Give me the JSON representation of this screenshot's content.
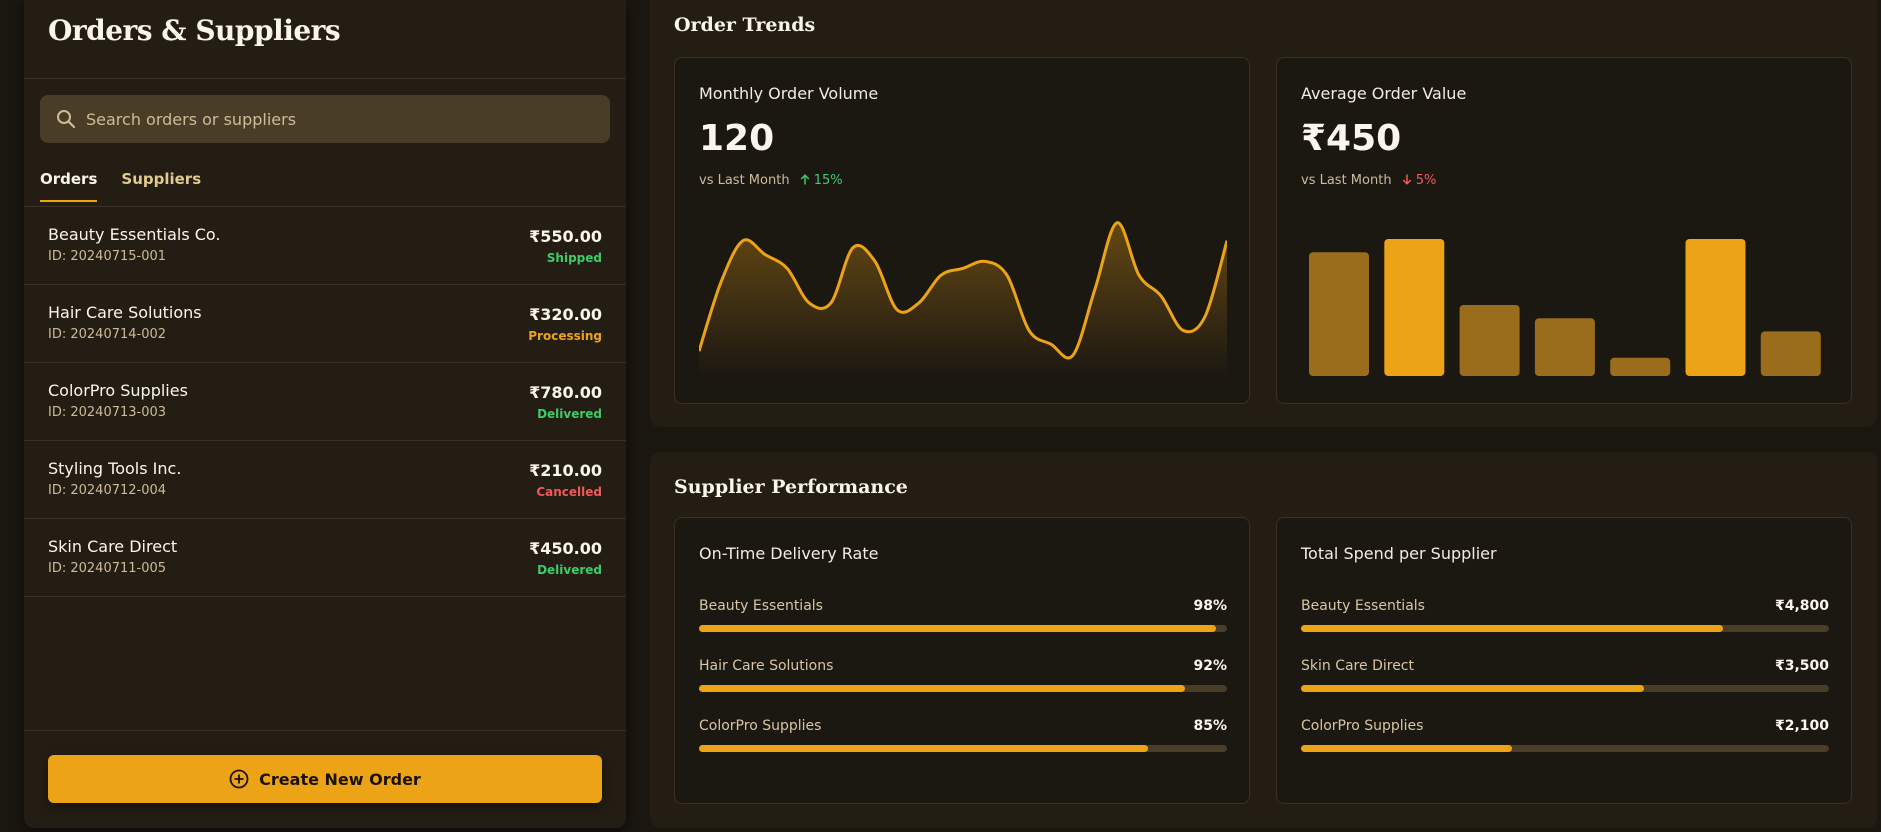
{
  "sidebar": {
    "title": "Orders & Suppliers",
    "search_placeholder": "Search orders or suppliers",
    "tabs": [
      {
        "label": "Orders"
      },
      {
        "label": "Suppliers"
      }
    ],
    "orders": [
      {
        "name": "Beauty Essentials Co.",
        "id": "ID: 20240715-001",
        "amount": "₹550.00",
        "status": "Shipped",
        "status_color": "#3ecb6b"
      },
      {
        "name": "Hair Care Solutions",
        "id": "ID: 20240714-002",
        "amount": "₹320.00",
        "status": "Processing",
        "status_color": "#eda316"
      },
      {
        "name": "ColorPro Supplies",
        "id": "ID: 20240713-003",
        "amount": "₹780.00",
        "status": "Delivered",
        "status_color": "#3ecb6b"
      },
      {
        "name": "Styling Tools Inc.",
        "id": "ID: 20240712-004",
        "amount": "₹210.00",
        "status": "Cancelled",
        "status_color": "#ef5a5a"
      },
      {
        "name": "Skin Care Direct",
        "id": "ID: 20240711-005",
        "amount": "₹450.00",
        "status": "Delivered",
        "status_color": "#3ecb6b"
      }
    ],
    "create_label": "Create New Order"
  },
  "trends": {
    "title": "Order Trends",
    "volume": {
      "title": "Monthly Order Volume",
      "value": "120",
      "compare": "vs Last Month",
      "change": "15%",
      "direction": "up"
    },
    "aov": {
      "title": "Average Order Value",
      "value": "₹450",
      "compare": "vs Last Month",
      "change": "5%",
      "direction": "down"
    }
  },
  "performance": {
    "title": "Supplier Performance",
    "delivery": {
      "title": "On-Time Delivery Rate",
      "rows": [
        {
          "label": "Beauty Essentials",
          "value": "98%",
          "fraction": 0.98
        },
        {
          "label": "Hair Care Solutions",
          "value": "92%",
          "fraction": 0.92
        },
        {
          "label": "ColorPro Supplies",
          "value": "85%",
          "fraction": 0.85
        }
      ]
    },
    "spend": {
      "title": "Total Spend per Supplier",
      "rows": [
        {
          "label": "Beauty Essentials",
          "value": "₹4,800",
          "fraction": 0.8
        },
        {
          "label": "Skin Care Direct",
          "value": "₹3,500",
          "fraction": 0.65
        },
        {
          "label": "ColorPro Supplies",
          "value": "₹2,100",
          "fraction": 0.4
        }
      ]
    }
  },
  "colors": {
    "accent": "#eda316",
    "accent_dim": "#9a6d1c",
    "success": "#3ecb6b",
    "danger": "#ef5a5a"
  },
  "icons": {
    "search": "search-icon",
    "create": "plus-circle-icon",
    "up": "arrow-up-icon",
    "down": "arrow-down-icon"
  },
  "chart_data": [
    {
      "type": "area",
      "x": [
        1,
        2,
        3,
        4,
        5,
        6,
        7,
        8,
        9,
        10,
        11,
        12,
        13,
        14,
        15,
        16,
        17,
        18,
        19,
        20,
        21,
        22,
        23,
        24,
        25
      ],
      "values": [
        0.05,
        0.55,
        0.85,
        0.75,
        0.65,
        0.4,
        0.4,
        0.8,
        0.7,
        0.35,
        0.4,
        0.6,
        0.65,
        0.7,
        0.6,
        0.2,
        0.1,
        0.02,
        0.5,
        0.98,
        0.6,
        0.45,
        0.2,
        0.3,
        0.85
      ]
    },
    {
      "type": "bar",
      "values": [
        0.9,
        1.0,
        0.5,
        0.4,
        0.1,
        1.0,
        0.3
      ],
      "highlight": [
        false,
        true,
        false,
        false,
        false,
        true,
        false
      ]
    }
  ]
}
